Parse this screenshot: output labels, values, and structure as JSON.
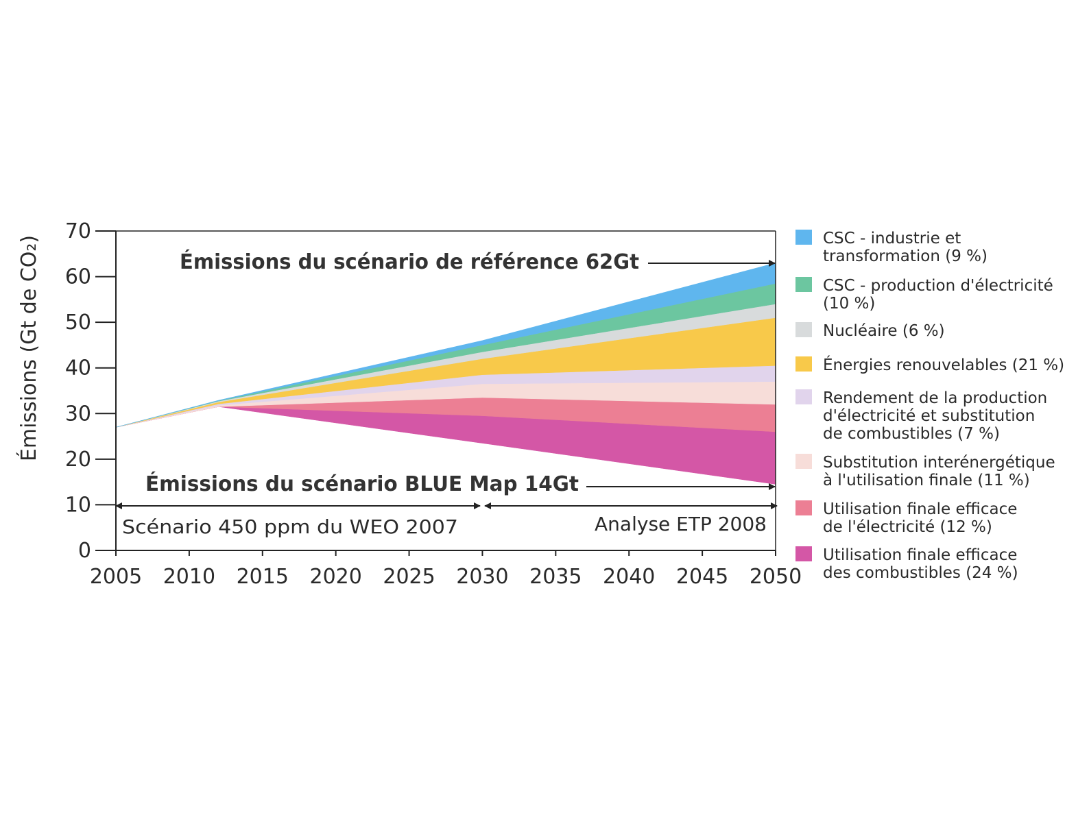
{
  "chart_data": {
    "type": "area",
    "ylabel": "Émissions (Gt de CO₂)",
    "ylim": [
      0,
      70
    ],
    "yticks": [
      0,
      10,
      20,
      30,
      40,
      50,
      60,
      70
    ],
    "xlim": [
      2005,
      2050
    ],
    "xticks": [
      "2005",
      "2010",
      "2015",
      "2020",
      "2025",
      "2030",
      "2035",
      "2040",
      "2045",
      "2050"
    ],
    "x": [
      2005,
      2012,
      2030,
      2050
    ],
    "baseline": [
      27,
      31.5,
      23.5,
      14.5
    ],
    "series": [
      {
        "name": "Utilisation finale efficace des combustibles (24 %)",
        "values": [
          0,
          0,
          6,
          11.5
        ],
        "color": "#d457a6"
      },
      {
        "name": "Utilisation finale efficace de l'électricité (12 %)",
        "values": [
          0,
          0,
          4,
          6
        ],
        "color": "#ec7f94"
      },
      {
        "name": "Substitution interénergétique à l'utilisation finale (11 %)",
        "values": [
          0,
          0.3,
          3,
          5
        ],
        "color": "#f7ddd9"
      },
      {
        "name": "Rendement de la production d'électricité et substitution de combustibles (7 %)",
        "values": [
          0,
          0.3,
          2,
          3.5
        ],
        "color": "#e1d4ec"
      },
      {
        "name": "Énergies renouvelables (21 %)",
        "values": [
          0,
          0.4,
          3.5,
          10.5
        ],
        "color": "#f8c94a"
      },
      {
        "name": "Nucléaire (6 %)",
        "values": [
          0,
          0.2,
          1.5,
          3
        ],
        "color": "#d8dbdc"
      },
      {
        "name": "CSC - production d'électricité (10 %)",
        "values": [
          0,
          0.1,
          1.5,
          4.5
        ],
        "color": "#6cc6a0"
      },
      {
        "name": "CSC - industrie et transformation (9 %)",
        "values": [
          0,
          0.1,
          1,
          4.5
        ],
        "color": "#5fb6ee"
      }
    ],
    "annotations": {
      "reference": "Émissions du scénario de référence 62Gt",
      "bluemap": "Émissions du scénario BLUE Map 14Gt",
      "period_weo": "Scénario 450 ppm du WEO 2007",
      "period_etp": "Analyse ETP 2008"
    }
  },
  "legend": {
    "items": [
      {
        "lines": [
          "CSC - industrie et",
          "transformation (9 %)"
        ],
        "color": "#5fb6ee"
      },
      {
        "lines": [
          "CSC - production d'électricité",
          "(10 %)"
        ],
        "color": "#6cc6a0"
      },
      {
        "lines": [
          "Nucléaire (6 %)"
        ],
        "color": "#d8dbdc"
      },
      {
        "lines": [
          "Énergies renouvelables (21 %)"
        ],
        "color": "#f8c94a"
      },
      {
        "lines": [
          "Rendement de la production",
          "d'électricité et substitution",
          "de combustibles (7 %)"
        ],
        "color": "#e1d4ec"
      },
      {
        "lines": [
          "Substitution interénergétique",
          "à l'utilisation finale (11 %)"
        ],
        "color": "#f7ddd9"
      },
      {
        "lines": [
          "Utilisation finale efficace",
          "de l'électricité (12 %)"
        ],
        "color": "#ec7f94"
      },
      {
        "lines": [
          "Utilisation finale efficace",
          "des combustibles (24 %)"
        ],
        "color": "#d457a6"
      }
    ]
  }
}
